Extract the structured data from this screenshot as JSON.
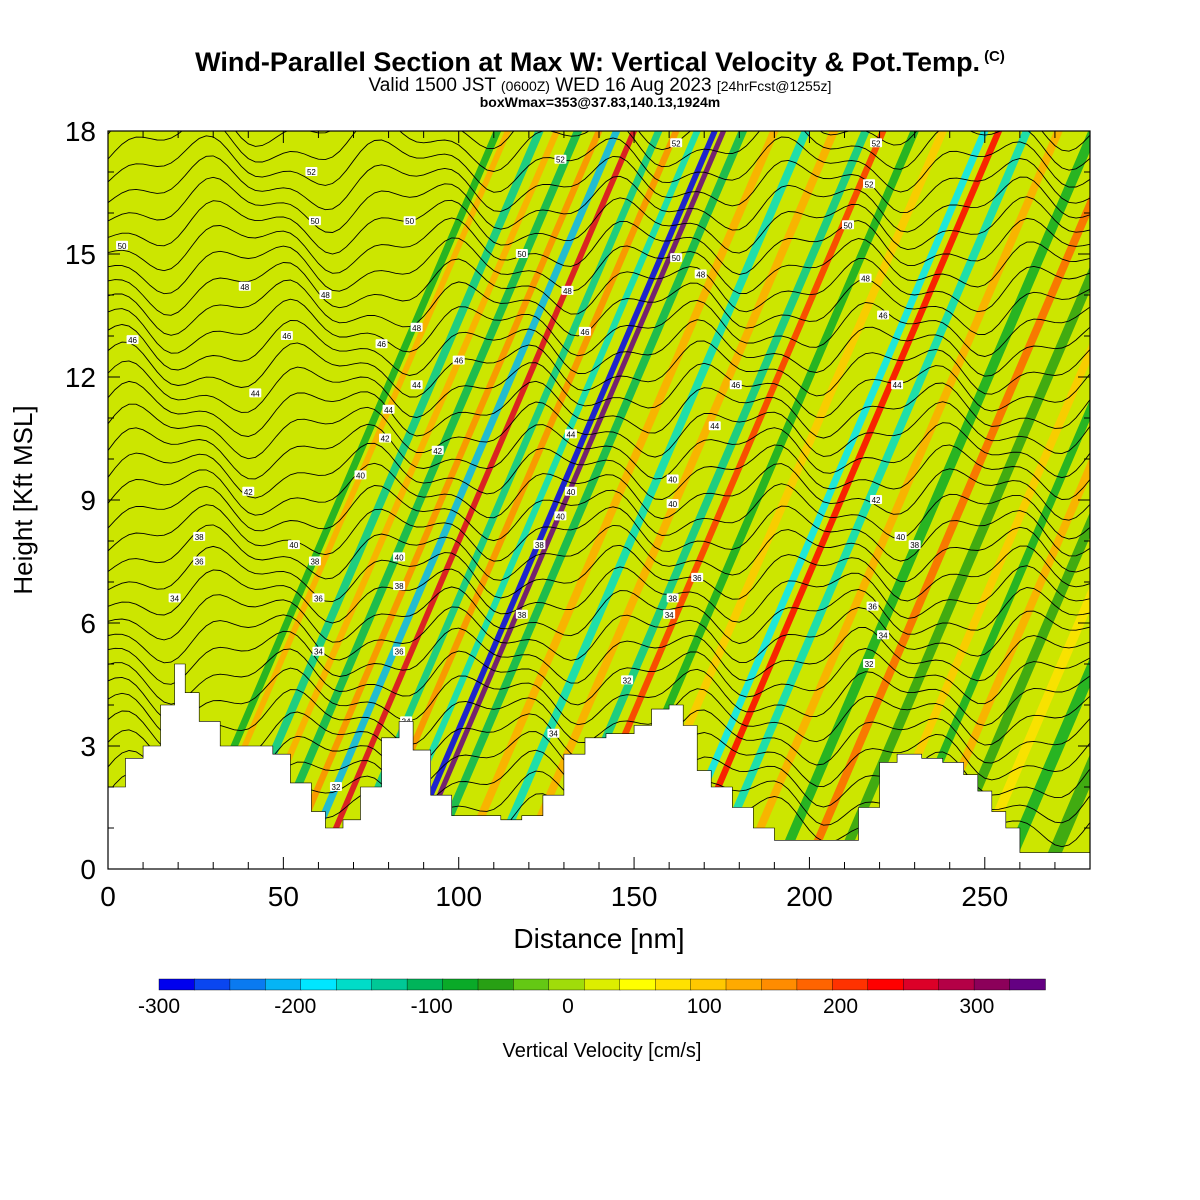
{
  "header": {
    "title": "Wind-Parallel Section at Max W: Vertical Velocity & Pot.Temp.",
    "copyright": "(C)",
    "valid_prefix": "Valid 1500 JST",
    "valid_utc": "(0600Z)",
    "valid_date": "WED 16 Aug 2023",
    "valid_fcst": "[24hrFcst@1255z]",
    "box_info": "boxWmax=353@37.83,140.13,1924m"
  },
  "chart_data": {
    "type": "heatmap",
    "xlabel": "Distance [nm]",
    "ylabel": "Height [Kft MSL]",
    "xlim": [
      0,
      280
    ],
    "ylim": [
      0,
      18
    ],
    "x_ticks": [
      0,
      50,
      100,
      150,
      200,
      250
    ],
    "y_ticks": [
      0,
      3,
      6,
      9,
      12,
      15,
      18
    ],
    "colorbar": {
      "label": "Vertical Velocity [cm/s]",
      "min": -300,
      "max": 350,
      "step": 25,
      "tick_values": [
        -300,
        -200,
        -100,
        0,
        100,
        200,
        300
      ],
      "colors": [
        "#0000ee",
        "#0a46f0",
        "#0a7af0",
        "#05b4f5",
        "#00e6ff",
        "#00dcc8",
        "#00c896",
        "#00b45a",
        "#0aaa28",
        "#28a014",
        "#64c814",
        "#a0dc0a",
        "#dcee00",
        "#ffff00",
        "#ffe100",
        "#ffc800",
        "#ffaa00",
        "#ff8c00",
        "#ff6400",
        "#ff3200",
        "#ff0000",
        "#dc0028",
        "#b40046",
        "#8c005a",
        "#640082"
      ]
    },
    "terrain_profile": [
      [
        0,
        2.0
      ],
      [
        5,
        2.7
      ],
      [
        10,
        3.0
      ],
      [
        15,
        4.0
      ],
      [
        19,
        5.0
      ],
      [
        22,
        4.3
      ],
      [
        26,
        3.6
      ],
      [
        32,
        3.0
      ],
      [
        40,
        3.0
      ],
      [
        47,
        2.8
      ],
      [
        52,
        2.1
      ],
      [
        58,
        1.4
      ],
      [
        62,
        1.0
      ],
      [
        67,
        1.2
      ],
      [
        72,
        2.0
      ],
      [
        78,
        3.2
      ],
      [
        83,
        3.6
      ],
      [
        87,
        2.9
      ],
      [
        92,
        1.8
      ],
      [
        98,
        1.3
      ],
      [
        106,
        1.3
      ],
      [
        112,
        1.2
      ],
      [
        118,
        1.3
      ],
      [
        124,
        1.8
      ],
      [
        130,
        2.8
      ],
      [
        136,
        3.2
      ],
      [
        142,
        3.3
      ],
      [
        150,
        3.5
      ],
      [
        155,
        3.9
      ],
      [
        160,
        4.0
      ],
      [
        164,
        3.5
      ],
      [
        168,
        2.4
      ],
      [
        172,
        2.0
      ],
      [
        178,
        1.5
      ],
      [
        184,
        1.0
      ],
      [
        190,
        0.7
      ],
      [
        200,
        0.7
      ],
      [
        210,
        0.7
      ],
      [
        214,
        1.5
      ],
      [
        220,
        2.6
      ],
      [
        225,
        2.8
      ],
      [
        232,
        2.7
      ],
      [
        238,
        2.6
      ],
      [
        244,
        2.3
      ],
      [
        248,
        1.9
      ],
      [
        252,
        1.4
      ],
      [
        256,
        1.0
      ],
      [
        260,
        0.4
      ],
      [
        270,
        0.4
      ],
      [
        280,
        0.4
      ]
    ],
    "velocity_bands": [
      {
        "x": 21,
        "w": -90,
        "width": 2.2
      },
      {
        "x": 24,
        "w": 110,
        "width": 1.8
      },
      {
        "x": 33,
        "w": -130,
        "width": 2.5
      },
      {
        "x": 38,
        "w": 120,
        "width": 2.0
      },
      {
        "x": 44,
        "w": -110,
        "width": 2.5
      },
      {
        "x": 50,
        "w": 130,
        "width": 2.0
      },
      {
        "x": 55,
        "w": -220,
        "width": 2.2
      },
      {
        "x": 60,
        "w": 230,
        "width": 1.8
      },
      {
        "x": 67,
        "w": -140,
        "width": 2.2
      },
      {
        "x": 72,
        "w": 140,
        "width": 2.0
      },
      {
        "x": 78,
        "w": -170,
        "width": 2.0
      },
      {
        "x": 83,
        "w": -300,
        "width": 1.8
      },
      {
        "x": 85.5,
        "w": 353,
        "width": 1.6
      },
      {
        "x": 91,
        "w": -120,
        "width": 2.5
      },
      {
        "x": 100,
        "w": 120,
        "width": 2.5
      },
      {
        "x": 109,
        "w": -160,
        "width": 2.5
      },
      {
        "x": 117,
        "w": 110,
        "width": 2.5
      },
      {
        "x": 126,
        "w": -130,
        "width": 2.5
      },
      {
        "x": 131,
        "w": 180,
        "width": 2.0
      },
      {
        "x": 140,
        "w": -100,
        "width": 2.5
      },
      {
        "x": 148,
        "w": 90,
        "width": 2.5
      },
      {
        "x": 160,
        "w": -180,
        "width": 2.2
      },
      {
        "x": 164,
        "w": 220,
        "width": 2.0
      },
      {
        "x": 172,
        "w": -160,
        "width": 2.5
      },
      {
        "x": 181,
        "w": 120,
        "width": 2.5
      },
      {
        "x": 191,
        "w": -80,
        "width": 3.0
      },
      {
        "x": 199,
        "w": 150,
        "width": 2.5
      },
      {
        "x": 208,
        "w": -70,
        "width": 3.0
      },
      {
        "x": 217,
        "w": 90,
        "width": 2.5
      },
      {
        "x": 224,
        "w": -80,
        "width": 2.5
      },
      {
        "x": 231,
        "w": 120,
        "width": 2.5
      },
      {
        "x": 238,
        "w": -60,
        "width": 3.0
      },
      {
        "x": 247,
        "w": 60,
        "width": 3.0
      },
      {
        "x": 256,
        "w": -90,
        "width": 3.5
      },
      {
        "x": 268,
        "w": -60,
        "width": 4.0
      }
    ],
    "theta_labels": [
      {
        "x": 4,
        "y": 15.2,
        "label": "50"
      },
      {
        "x": 7,
        "y": 12.9,
        "label": "46"
      },
      {
        "x": 19,
        "y": 6.6,
        "label": "34"
      },
      {
        "x": 26,
        "y": 8.1,
        "label": "38"
      },
      {
        "x": 26,
        "y": 7.5,
        "label": "36"
      },
      {
        "x": 40,
        "y": 9.2,
        "label": "42"
      },
      {
        "x": 42,
        "y": 11.6,
        "label": "44"
      },
      {
        "x": 39,
        "y": 14.2,
        "label": "48"
      },
      {
        "x": 51,
        "y": 13.0,
        "label": "46"
      },
      {
        "x": 58,
        "y": 17.0,
        "label": "52"
      },
      {
        "x": 59,
        "y": 15.8,
        "label": "50"
      },
      {
        "x": 62,
        "y": 14.0,
        "label": "48"
      },
      {
        "x": 53,
        "y": 7.9,
        "label": "40"
      },
      {
        "x": 59,
        "y": 7.5,
        "label": "38"
      },
      {
        "x": 60,
        "y": 6.6,
        "label": "36"
      },
      {
        "x": 60,
        "y": 5.3,
        "label": "34"
      },
      {
        "x": 65,
        "y": 2.0,
        "label": "32"
      },
      {
        "x": 72,
        "y": 9.6,
        "label": "40"
      },
      {
        "x": 78,
        "y": 12.8,
        "label": "46"
      },
      {
        "x": 80,
        "y": 11.2,
        "label": "44"
      },
      {
        "x": 79,
        "y": 10.5,
        "label": "42"
      },
      {
        "x": 83,
        "y": 7.6,
        "label": "40"
      },
      {
        "x": 83,
        "y": 6.9,
        "label": "38"
      },
      {
        "x": 83,
        "y": 5.3,
        "label": "36"
      },
      {
        "x": 85,
        "y": 3.6,
        "label": "34"
      },
      {
        "x": 86,
        "y": 15.8,
        "label": "50"
      },
      {
        "x": 88,
        "y": 13.2,
        "label": "48"
      },
      {
        "x": 88,
        "y": 11.8,
        "label": "44"
      },
      {
        "x": 100,
        "y": 12.4,
        "label": "46"
      },
      {
        "x": 94,
        "y": 10.2,
        "label": "42"
      },
      {
        "x": 118,
        "y": 6.2,
        "label": "38"
      },
      {
        "x": 123,
        "y": 7.9,
        "label": "38"
      },
      {
        "x": 118,
        "y": 15.0,
        "label": "50"
      },
      {
        "x": 129,
        "y": 17.3,
        "label": "52"
      },
      {
        "x": 131,
        "y": 14.1,
        "label": "48"
      },
      {
        "x": 136,
        "y": 13.1,
        "label": "46"
      },
      {
        "x": 132,
        "y": 10.6,
        "label": "44"
      },
      {
        "x": 132,
        "y": 9.2,
        "label": "40"
      },
      {
        "x": 129,
        "y": 8.6,
        "label": "40"
      },
      {
        "x": 127,
        "y": 3.3,
        "label": "34"
      },
      {
        "x": 148,
        "y": 4.6,
        "label": "32"
      },
      {
        "x": 162,
        "y": 17.7,
        "label": "52"
      },
      {
        "x": 162,
        "y": 14.9,
        "label": "50"
      },
      {
        "x": 169,
        "y": 14.5,
        "label": "48"
      },
      {
        "x": 161,
        "y": 9.5,
        "label": "40"
      },
      {
        "x": 161,
        "y": 8.9,
        "label": "40"
      },
      {
        "x": 161,
        "y": 6.6,
        "label": "38"
      },
      {
        "x": 160,
        "y": 6.2,
        "label": "34"
      },
      {
        "x": 168,
        "y": 7.1,
        "label": "36"
      },
      {
        "x": 173,
        "y": 10.8,
        "label": "44"
      },
      {
        "x": 179,
        "y": 11.8,
        "label": "46"
      },
      {
        "x": 219,
        "y": 17.7,
        "label": "52"
      },
      {
        "x": 217,
        "y": 16.7,
        "label": "52"
      },
      {
        "x": 211,
        "y": 15.7,
        "label": "50"
      },
      {
        "x": 216,
        "y": 14.4,
        "label": "48"
      },
      {
        "x": 221,
        "y": 13.5,
        "label": "46"
      },
      {
        "x": 225,
        "y": 11.8,
        "label": "44"
      },
      {
        "x": 219,
        "y": 9.0,
        "label": "42"
      },
      {
        "x": 226,
        "y": 8.1,
        "label": "40"
      },
      {
        "x": 230,
        "y": 7.9,
        "label": "38"
      },
      {
        "x": 218,
        "y": 6.4,
        "label": "36"
      },
      {
        "x": 221,
        "y": 5.7,
        "label": "34"
      },
      {
        "x": 217,
        "y": 5.0,
        "label": "32"
      }
    ]
  }
}
